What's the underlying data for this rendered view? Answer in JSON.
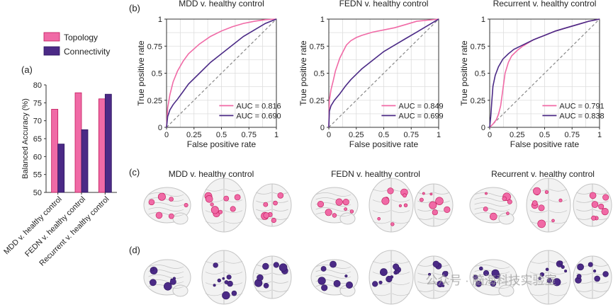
{
  "panels": {
    "a": "(a)",
    "b": "(b)",
    "c": "(c)",
    "d": "(d)"
  },
  "colors": {
    "topology": "#f06aa6",
    "topology_dark": "#c2185b",
    "connectivity": "#4b2a86",
    "connectivity_dark": "#2e1660",
    "diagonal": "#888888",
    "brain_fill": "#f2f2f2",
    "brain_line": "#c4c4c4"
  },
  "watermark": "公众号 · 脑海科技实验室",
  "chart_data": [
    {
      "id": "bar",
      "type": "bar",
      "ylabel": "Balanced Accuracy (%)",
      "ylim": [
        50,
        80
      ],
      "yticks": [
        50,
        55,
        60,
        65,
        70,
        75,
        80
      ],
      "categories": [
        "MDD v. healthy control",
        "FEDN v. healthy control",
        "Recurrent v. healthy control"
      ],
      "series": [
        {
          "name": "Topology",
          "values": [
            73.2,
            77.8,
            76.1
          ]
        },
        {
          "name": "Connectivity",
          "values": [
            63.5,
            67.5,
            77.4
          ]
        }
      ],
      "legend": [
        "Topology",
        "Connectivity"
      ],
      "legend_position": "top"
    },
    {
      "id": "roc1",
      "type": "line",
      "title": "MDD v. healthy control",
      "xlabel": "False positive rate",
      "ylabel": "True positive rate",
      "xlim": [
        0,
        1
      ],
      "ylim": [
        0,
        1
      ],
      "xticks": [
        "0",
        "0.25",
        "0.5",
        "0.75",
        "1"
      ],
      "yticks": [
        "0",
        "0.25",
        "0.5",
        "0.75",
        "1"
      ],
      "legend": [
        "AUC = 0.816",
        "AUC = 0.690"
      ],
      "series": [
        {
          "name": "Topology",
          "x": [
            0,
            0.01,
            0.03,
            0.06,
            0.1,
            0.15,
            0.2,
            0.3,
            0.4,
            0.5,
            0.6,
            0.7,
            0.8,
            0.9,
            1
          ],
          "y": [
            0,
            0.18,
            0.3,
            0.42,
            0.52,
            0.61,
            0.68,
            0.77,
            0.84,
            0.89,
            0.93,
            0.96,
            0.98,
            0.995,
            1
          ]
        },
        {
          "name": "Connectivity",
          "x": [
            0,
            0.01,
            0.03,
            0.06,
            0.1,
            0.15,
            0.2,
            0.3,
            0.4,
            0.5,
            0.6,
            0.7,
            0.8,
            0.9,
            1
          ],
          "y": [
            0,
            0.1,
            0.16,
            0.21,
            0.26,
            0.33,
            0.4,
            0.5,
            0.6,
            0.68,
            0.76,
            0.84,
            0.9,
            0.96,
            1
          ]
        }
      ]
    },
    {
      "id": "roc2",
      "type": "line",
      "title": "FEDN v. healthy control",
      "xlabel": "False positive rate",
      "ylabel": "True positive rate",
      "xlim": [
        0,
        1
      ],
      "ylim": [
        0,
        1
      ],
      "xticks": [
        "0",
        "0.25",
        "0.5",
        "0.75",
        "1"
      ],
      "yticks": [
        "0",
        "0.25",
        "0.5",
        "0.75",
        "1"
      ],
      "legend": [
        "AUC = 0.849",
        "AUC = 0.699"
      ],
      "series": [
        {
          "name": "Topology",
          "x": [
            0,
            0.005,
            0.02,
            0.04,
            0.06,
            0.08,
            0.1,
            0.13,
            0.16,
            0.2,
            0.25,
            0.3,
            0.4,
            0.5,
            0.6,
            0.7,
            0.8,
            0.9,
            1
          ],
          "y": [
            0,
            0.25,
            0.35,
            0.43,
            0.52,
            0.58,
            0.64,
            0.7,
            0.76,
            0.8,
            0.83,
            0.85,
            0.88,
            0.9,
            0.92,
            0.95,
            0.98,
            0.99,
            1
          ]
        },
        {
          "name": "Connectivity",
          "x": [
            0,
            0.005,
            0.02,
            0.05,
            0.1,
            0.15,
            0.2,
            0.3,
            0.4,
            0.5,
            0.6,
            0.7,
            0.8,
            0.9,
            1
          ],
          "y": [
            0,
            0.15,
            0.2,
            0.25,
            0.31,
            0.38,
            0.44,
            0.54,
            0.62,
            0.7,
            0.76,
            0.82,
            0.88,
            0.94,
            1
          ]
        }
      ]
    },
    {
      "id": "roc3",
      "type": "line",
      "title": "Recurrent v. healthy control",
      "xlabel": "False positive rate",
      "ylabel": "True positive rate",
      "xlim": [
        0,
        1
      ],
      "ylim": [
        0,
        1
      ],
      "xticks": [
        "0",
        "0.25",
        "0.5",
        "0.75",
        "1"
      ],
      "yticks": [
        "0",
        "0.25",
        "0.5",
        "0.75",
        "1"
      ],
      "legend": [
        "AUC = 0.791",
        "AUC = 0.838"
      ],
      "series": [
        {
          "name": "Topology",
          "x": [
            0,
            0.03,
            0.06,
            0.08,
            0.1,
            0.12,
            0.14,
            0.17,
            0.2,
            0.25,
            0.3,
            0.4,
            0.5,
            0.6,
            0.7,
            0.8,
            0.9,
            1
          ],
          "y": [
            0,
            0.03,
            0.07,
            0.12,
            0.2,
            0.35,
            0.5,
            0.6,
            0.66,
            0.71,
            0.75,
            0.81,
            0.85,
            0.89,
            0.92,
            0.95,
            0.98,
            1
          ]
        },
        {
          "name": "Connectivity",
          "x": [
            0,
            0.01,
            0.02,
            0.03,
            0.05,
            0.08,
            0.12,
            0.17,
            0.22,
            0.3,
            0.4,
            0.5,
            0.6,
            0.7,
            0.8,
            0.9,
            1
          ],
          "y": [
            0,
            0.1,
            0.25,
            0.38,
            0.48,
            0.56,
            0.63,
            0.68,
            0.72,
            0.76,
            0.81,
            0.85,
            0.89,
            0.92,
            0.95,
            0.98,
            1
          ]
        }
      ]
    }
  ],
  "brain_rows": [
    {
      "group": "MDD v. healthy control",
      "row": "topology"
    },
    {
      "group": "FEDN v. healthy control",
      "row": "topology"
    },
    {
      "group": "Recurrent v. healthy control",
      "row": "topology"
    },
    {
      "group": "MDD v. healthy control",
      "row": "connectivity"
    },
    {
      "group": "FEDN v. healthy control",
      "row": "connectivity"
    },
    {
      "group": "Recurrent v. healthy control",
      "row": "connectivity"
    }
  ]
}
